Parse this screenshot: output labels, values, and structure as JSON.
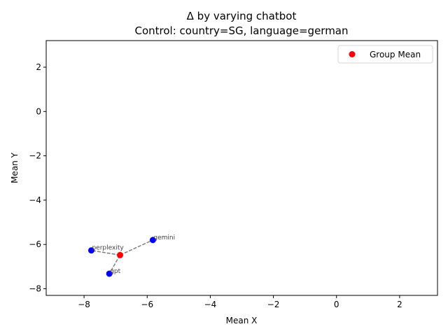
{
  "chart_data": {
    "type": "scatter",
    "title_line1": "Δ by varying chatbot",
    "title_line2": "Control: country=SG, language=german",
    "xlabel": "Mean X",
    "ylabel": "Mean Y",
    "xlim": [
      -9.2,
      3.2
    ],
    "ylim": [
      -8.3,
      3.2
    ],
    "xticks": [
      -8,
      -6,
      -4,
      -2,
      0,
      2
    ],
    "yticks": [
      -8,
      -6,
      -4,
      -2,
      0,
      2
    ],
    "xtick_labels": [
      "−8",
      "−6",
      "−4",
      "−2",
      "0",
      "2"
    ],
    "ytick_labels": [
      "−8",
      "−6",
      "−4",
      "−2",
      "0",
      "2"
    ],
    "points": [
      {
        "label": "gemini",
        "x": -5.82,
        "y": -5.8,
        "color": "#0000ff"
      },
      {
        "label": "perplexity",
        "x": -7.77,
        "y": -6.27,
        "color": "#0000ff"
      },
      {
        "label": "gpt",
        "x": -7.2,
        "y": -7.32,
        "color": "#0000ff"
      }
    ],
    "group_mean": {
      "x": -6.86,
      "y": -6.48,
      "color": "#ff0000"
    },
    "legend": {
      "label": "Group Mean",
      "position": "upper right"
    },
    "grid": false,
    "connector_color": "#808080"
  }
}
